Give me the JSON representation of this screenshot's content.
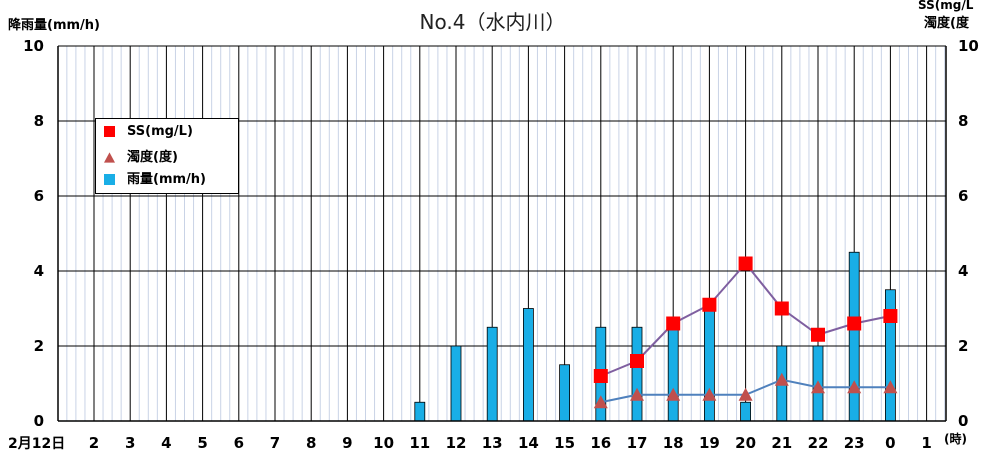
{
  "chart_data": {
    "type": "bar+line",
    "title": "No.4（水内川）",
    "y_left_label": "降雨量(mm/h)",
    "y_right_label_line1": "SS(mg/L",
    "y_right_label_line2": "濁度(度",
    "x_unit_label": "(時)",
    "date_label": "2月12日",
    "ylim": [
      0,
      10
    ],
    "y_ticks": [
      "0",
      "2",
      "4",
      "6",
      "8",
      "10"
    ],
    "hours": [
      "2",
      "3",
      "4",
      "5",
      "6",
      "7",
      "8",
      "9",
      "10",
      "11",
      "12",
      "13",
      "14",
      "15",
      "16",
      "17",
      "18",
      "19",
      "20",
      "21",
      "22",
      "23",
      "0",
      "1"
    ],
    "series": [
      {
        "name": "雨量(mm/h)",
        "kind": "bar",
        "color": "#19aee6",
        "values": [
          0,
          0,
          0,
          0,
          0,
          0,
          0,
          0,
          0,
          0.5,
          2.0,
          2.5,
          3.0,
          1.5,
          2.5,
          2.5,
          2.6,
          3.1,
          0.5,
          2.0,
          2.0,
          4.5,
          3.5,
          0
        ]
      },
      {
        "name": "SS(mg/L)",
        "kind": "line",
        "marker": "square",
        "color": "#ff0000",
        "line_color": "#7f5fa0",
        "hours": [
          "16",
          "17",
          "18",
          "19",
          "20",
          "21",
          "22",
          "23",
          "0"
        ],
        "values": [
          1.2,
          1.6,
          2.6,
          3.1,
          4.2,
          3.0,
          2.3,
          2.6,
          2.8
        ]
      },
      {
        "name": "濁度(度)",
        "kind": "line",
        "marker": "triangle",
        "color": "#c0504d",
        "line_color": "#4f81bd",
        "hours": [
          "16",
          "17",
          "18",
          "19",
          "20",
          "21",
          "22",
          "23",
          "0"
        ],
        "values": [
          0.5,
          0.7,
          0.7,
          0.7,
          0.7,
          1.1,
          0.9,
          0.9,
          0.9
        ]
      }
    ],
    "legend": [
      "SS(mg/L)",
      "濁度(度)",
      "雨量(mm/h)"
    ],
    "legend_position": "top-left",
    "grid": true
  }
}
